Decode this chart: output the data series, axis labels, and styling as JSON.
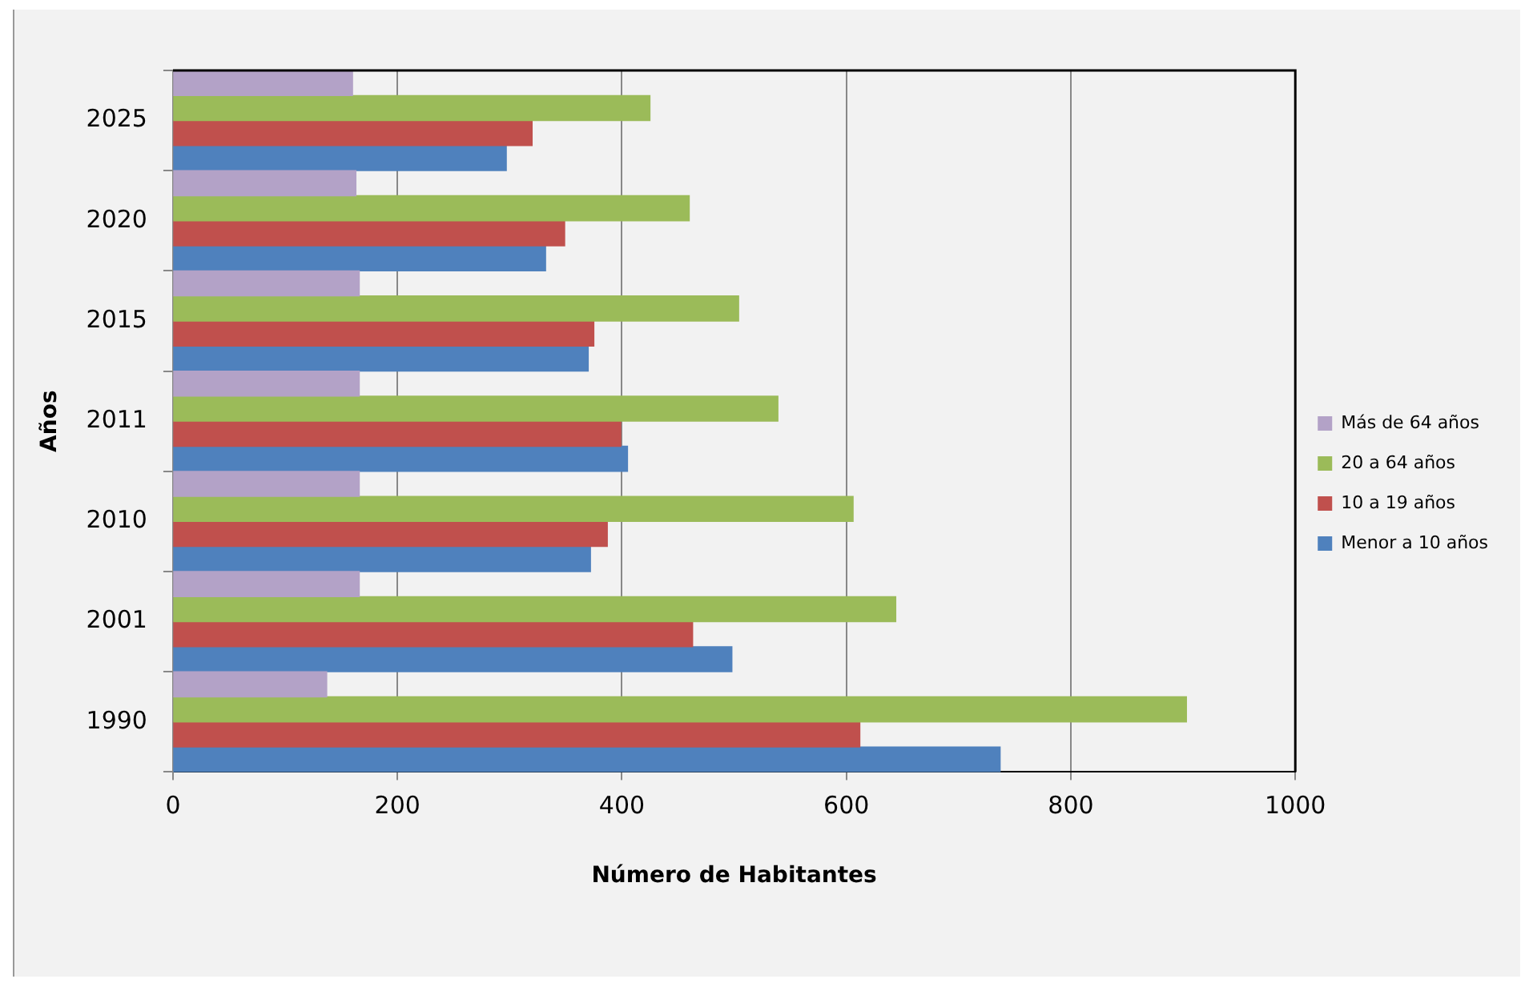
{
  "chart_data": {
    "type": "bar",
    "orientation": "horizontal",
    "xlabel": "Número de Habitantes",
    "ylabel": "Años",
    "categories": [
      "2025",
      "2020",
      "2015",
      "2011",
      "2010",
      "2001",
      "1990"
    ],
    "series": [
      {
        "name": "Más de 64 años",
        "color": "#b3a2c7",
        "values": [
          160,
          163,
          166,
          166,
          166,
          166,
          137
        ]
      },
      {
        "name": "20 a 64 años",
        "color": "#9bbb59",
        "values": [
          425,
          460,
          504,
          539,
          606,
          644,
          903
        ]
      },
      {
        "name": "10 a 19 años",
        "color": "#c0504d",
        "values": [
          320,
          349,
          375,
          399,
          387,
          463,
          612
        ]
      },
      {
        "name": "Menor a 10 años",
        "color": "#4f81bd",
        "values": [
          297,
          332,
          370,
          405,
          372,
          498,
          737
        ]
      }
    ],
    "xlim": [
      0,
      1000
    ],
    "xticks": [
      0,
      200,
      400,
      600,
      800,
      1000
    ],
    "grid": "x",
    "legend": "right"
  }
}
